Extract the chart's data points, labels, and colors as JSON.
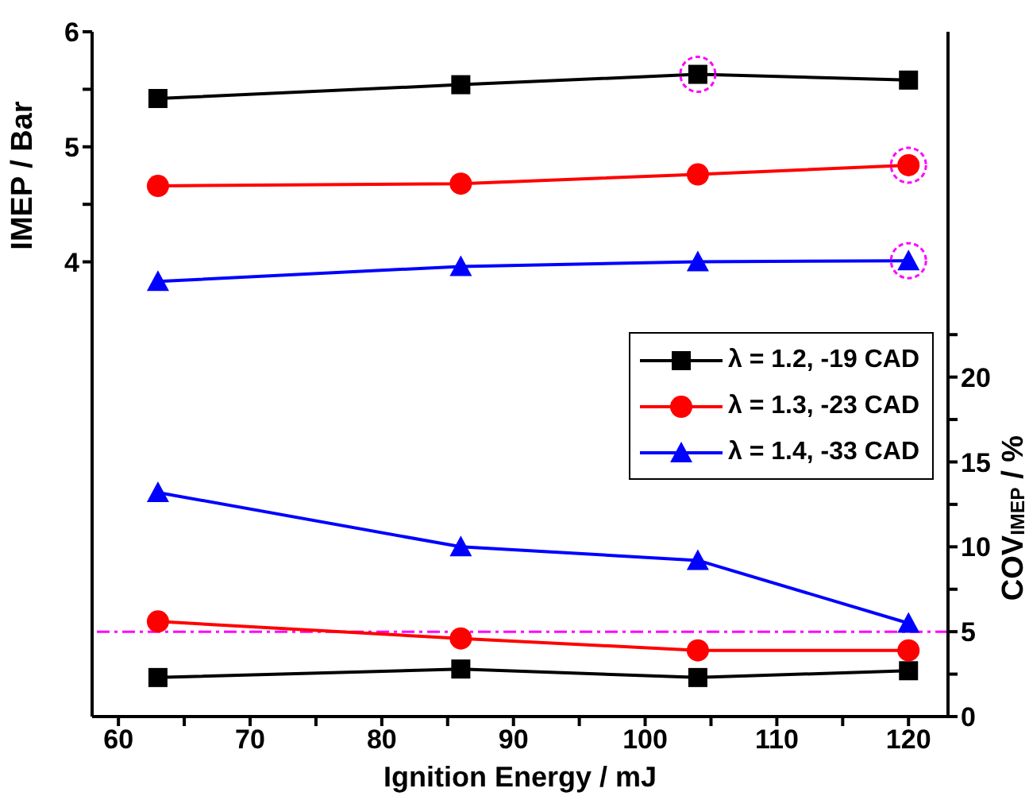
{
  "chart_data": [
    {
      "type": "line",
      "ylabel": "IMEP / Bar",
      "x": [
        63,
        86,
        104,
        120
      ],
      "xlim": [
        58,
        123
      ],
      "ylim": [
        3.5,
        6
      ],
      "yticks": [
        4,
        {
          "value": 4.5,
          "label": null
        },
        5,
        {
          "value": 5.5,
          "label": null
        },
        6
      ],
      "tick_labels": "y",
      "grid": false,
      "legend": false,
      "series": [
        {
          "color": "#000000",
          "marker": "square",
          "values": [
            5.42,
            5.54,
            5.63,
            5.58
          ]
        },
        {
          "color": "#ff0000",
          "marker": "circle",
          "values": [
            4.66,
            4.68,
            4.76,
            4.84
          ]
        },
        {
          "color": "#0000ff",
          "marker": "triangle",
          "values": [
            3.83,
            3.96,
            4.0,
            4.01
          ]
        }
      ]
    },
    {
      "type": "line",
      "xlabel": "Ignition Energy / mJ",
      "y2label": "COV$_{IMEP}$ / %",
      "x": [
        63,
        86,
        104,
        120
      ],
      "xlim": [
        58,
        123
      ],
      "xticks": [
        60,
        {
          "value": 65,
          "label": null
        },
        70,
        {
          "value": 75,
          "label": null
        },
        80,
        {
          "value": 85,
          "label": null
        },
        90,
        {
          "value": 95,
          "label": null
        },
        100,
        {
          "value": 105,
          "label": null
        },
        110,
        {
          "value": 115,
          "label": null
        },
        120
      ],
      "y2lim": [
        0,
        23.4
      ],
      "y2ticks": [
        0,
        {
          "value": 2.5,
          "label": null
        },
        5,
        {
          "value": 7.5,
          "label": null
        },
        10,
        {
          "value": 12.5,
          "label": null
        },
        15,
        {
          "value": 17.5,
          "label": null
        },
        20,
        {
          "value": 22.5,
          "label": null
        }
      ],
      "grid": false,
      "legend": "top right",
      "ref_lines": [
        {
          "axis": "y2",
          "value": 5,
          "color": "#ff00ff",
          "line_style": "dashdot"
        }
      ],
      "series": [
        {
          "name": "λ = 1.2, -19 CAD",
          "color": "#000000",
          "marker": "square",
          "axis": "y2",
          "values": [
            2.3,
            2.8,
            2.3,
            2.7
          ]
        },
        {
          "name": "λ = 1.3, -23 CAD",
          "color": "#ff0000",
          "marker": "circle",
          "axis": "y2",
          "values": [
            5.6,
            4.6,
            3.9,
            3.9
          ]
        },
        {
          "name": "λ = 1.4, -33 CAD",
          "color": "#0000ff",
          "marker": "triangle",
          "axis": "y2",
          "values": [
            13.2,
            10.0,
            9.2,
            5.5
          ]
        }
      ]
    }
  ]
}
